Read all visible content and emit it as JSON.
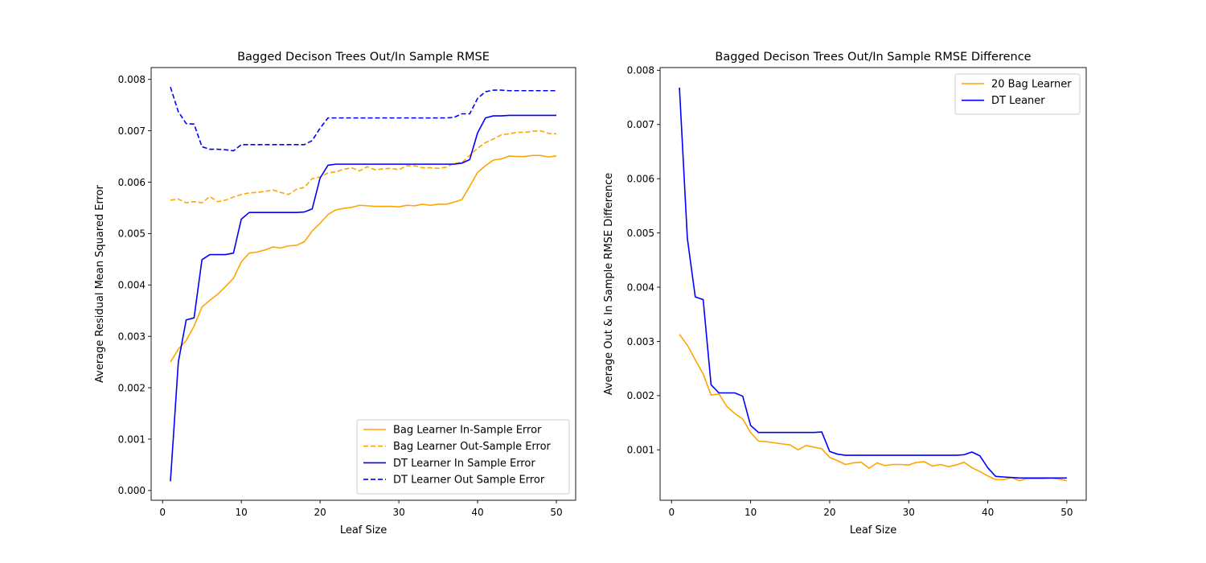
{
  "chart_data": [
    {
      "type": "line",
      "title": "Bagged Decison Trees Out/In Sample RMSE",
      "xlabel": "Leaf Size",
      "ylabel": "Average Residual Mean Squared Error",
      "xlim": [
        -1.45,
        52.45
      ],
      "ylim": [
        -0.00019,
        0.00823
      ],
      "xticks": [
        0,
        10,
        20,
        30,
        40,
        50
      ],
      "yticks": [
        0,
        0.001,
        0.002,
        0.003,
        0.004,
        0.005,
        0.006,
        0.007,
        0.008
      ],
      "ytick_labels": [
        "0.000",
        "0.001",
        "0.002",
        "0.003",
        "0.004",
        "0.005",
        "0.006",
        "0.007",
        "0.008"
      ],
      "grid": false,
      "legend_position": "lower-right",
      "x": [
        1,
        2,
        3,
        4,
        5,
        6,
        7,
        8,
        9,
        10,
        11,
        12,
        13,
        14,
        15,
        16,
        17,
        18,
        19,
        20,
        21,
        22,
        23,
        24,
        25,
        26,
        27,
        28,
        29,
        30,
        31,
        32,
        33,
        34,
        35,
        36,
        37,
        38,
        39,
        40,
        41,
        42,
        43,
        44,
        45,
        46,
        47,
        48,
        49,
        50
      ],
      "series": [
        {
          "name": "Bag Learner In-Sample Error",
          "color": "#ffa500",
          "dash": "solid",
          "values": [
            0.0025,
            0.00275,
            0.00292,
            0.0032,
            0.00357,
            0.0037,
            0.00382,
            0.00397,
            0.00413,
            0.00445,
            0.00462,
            0.00464,
            0.00468,
            0.00474,
            0.00472,
            0.00476,
            0.00477,
            0.00484,
            0.00505,
            0.0052,
            0.00537,
            0.00546,
            0.00549,
            0.00551,
            0.00555,
            0.00554,
            0.00553,
            0.00553,
            0.00553,
            0.00552,
            0.00555,
            0.00554,
            0.00557,
            0.00555,
            0.00557,
            0.00557,
            0.00561,
            0.00566,
            0.00592,
            0.00619,
            0.00632,
            0.00643,
            0.00645,
            0.00651,
            0.0065,
            0.0065,
            0.00652,
            0.00652,
            0.00649,
            0.00651
          ]
        },
        {
          "name": "Bag Learner Out-Sample Error",
          "color": "#ffa500",
          "dash": "dashed",
          "values": [
            0.00565,
            0.00567,
            0.0056,
            0.00562,
            0.0056,
            0.00572,
            0.00562,
            0.00565,
            0.00571,
            0.00576,
            0.00579,
            0.0058,
            0.00582,
            0.00585,
            0.0058,
            0.00576,
            0.00586,
            0.0059,
            0.00607,
            0.0061,
            0.00618,
            0.0062,
            0.00625,
            0.00628,
            0.00622,
            0.0063,
            0.00624,
            0.00626,
            0.00627,
            0.00624,
            0.00632,
            0.00632,
            0.00628,
            0.00628,
            0.00627,
            0.00629,
            0.00637,
            0.00638,
            0.00652,
            0.00666,
            0.00677,
            0.00684,
            0.00692,
            0.00694,
            0.00697,
            0.00697,
            0.00699,
            0.007,
            0.00695,
            0.00694
          ]
        },
        {
          "name": "DT Learner In Sample Error",
          "color": "#0000ff",
          "dash": "solid",
          "values": [
            0.00018,
            0.0025,
            0.00332,
            0.00336,
            0.00449,
            0.00459,
            0.00459,
            0.00459,
            0.00462,
            0.00528,
            0.00541,
            0.00541,
            0.00541,
            0.00541,
            0.00541,
            0.00541,
            0.00541,
            0.00542,
            0.00548,
            0.00608,
            0.00633,
            0.00635,
            0.00635,
            0.00635,
            0.00635,
            0.00635,
            0.00635,
            0.00635,
            0.00635,
            0.00635,
            0.00635,
            0.00635,
            0.00635,
            0.00635,
            0.00635,
            0.00635,
            0.00635,
            0.00637,
            0.00644,
            0.00696,
            0.00725,
            0.00729,
            0.00729,
            0.0073,
            0.0073,
            0.0073,
            0.0073,
            0.0073,
            0.0073,
            0.0073
          ]
        },
        {
          "name": "DT Learner Out Sample Error",
          "color": "#0000ff",
          "dash": "dashed",
          "values": [
            0.00785,
            0.00737,
            0.00714,
            0.00713,
            0.00669,
            0.00664,
            0.00664,
            0.00663,
            0.00661,
            0.00673,
            0.00673,
            0.00673,
            0.00673,
            0.00673,
            0.00673,
            0.00673,
            0.00673,
            0.00673,
            0.00681,
            0.00705,
            0.00725,
            0.00725,
            0.00725,
            0.00725,
            0.00725,
            0.00725,
            0.00725,
            0.00725,
            0.00725,
            0.00725,
            0.00725,
            0.00725,
            0.00725,
            0.00725,
            0.00725,
            0.00725,
            0.00726,
            0.00733,
            0.00733,
            0.00763,
            0.00776,
            0.00779,
            0.00779,
            0.00778,
            0.00778,
            0.00778,
            0.00778,
            0.00778,
            0.00778,
            0.00778
          ]
        }
      ]
    },
    {
      "type": "line",
      "title": "Bagged Decison Trees Out/In Sample RMSE Difference",
      "xlabel": "Leaf Size",
      "ylabel": "Average Out & In Sample RMSE Difference",
      "xlim": [
        -1.45,
        52.45
      ],
      "ylim": [
        7e-05,
        0.00805
      ],
      "xticks": [
        0,
        10,
        20,
        30,
        40,
        50
      ],
      "yticks": [
        0.001,
        0.002,
        0.003,
        0.004,
        0.005,
        0.006,
        0.007,
        0.008
      ],
      "ytick_labels": [
        "0.001",
        "0.002",
        "0.003",
        "0.004",
        "0.005",
        "0.006",
        "0.007",
        "0.008"
      ],
      "grid": false,
      "legend_position": "upper-right",
      "x": [
        1,
        2,
        3,
        4,
        5,
        6,
        7,
        8,
        9,
        10,
        11,
        12,
        13,
        14,
        15,
        16,
        17,
        18,
        19,
        20,
        21,
        22,
        23,
        24,
        25,
        26,
        27,
        28,
        29,
        30,
        31,
        32,
        33,
        34,
        35,
        36,
        37,
        38,
        39,
        40,
        41,
        42,
        43,
        44,
        45,
        46,
        47,
        48,
        49,
        50
      ],
      "series": [
        {
          "name": "20 Bag Learner",
          "color": "#ffa500",
          "dash": "solid",
          "values": [
            0.00313,
            0.00293,
            0.00266,
            0.0024,
            0.00201,
            0.00203,
            0.0018,
            0.00167,
            0.00157,
            0.00132,
            0.00116,
            0.00115,
            0.00113,
            0.00111,
            0.00109,
            0.001,
            0.00108,
            0.00105,
            0.00102,
            0.00086,
            0.0008,
            0.00073,
            0.00076,
            0.00077,
            0.00066,
            0.00076,
            0.00071,
            0.00073,
            0.00073,
            0.00072,
            0.00077,
            0.00078,
            0.0007,
            0.00073,
            0.00069,
            0.00072,
            0.00077,
            0.00067,
            0.0006,
            0.00052,
            0.00045,
            0.00045,
            0.00049,
            0.00043,
            0.00047,
            0.00047,
            0.00047,
            0.00048,
            0.00046,
            0.00043
          ]
        },
        {
          "name": "DT Leaner",
          "color": "#0000ff",
          "dash": "solid",
          "values": [
            0.00768,
            0.0049,
            0.00382,
            0.00377,
            0.0022,
            0.00205,
            0.00205,
            0.00205,
            0.00199,
            0.00145,
            0.00132,
            0.00132,
            0.00132,
            0.00132,
            0.00132,
            0.00132,
            0.00132,
            0.00132,
            0.00133,
            0.00097,
            0.00092,
            0.0009,
            0.0009,
            0.0009,
            0.0009,
            0.0009,
            0.0009,
            0.0009,
            0.0009,
            0.0009,
            0.0009,
            0.0009,
            0.0009,
            0.0009,
            0.0009,
            0.0009,
            0.00091,
            0.00096,
            0.00089,
            0.00067,
            0.00051,
            0.0005,
            0.00049,
            0.00048,
            0.00048,
            0.00048,
            0.00048,
            0.00048,
            0.00048,
            0.00048
          ]
        }
      ]
    }
  ]
}
